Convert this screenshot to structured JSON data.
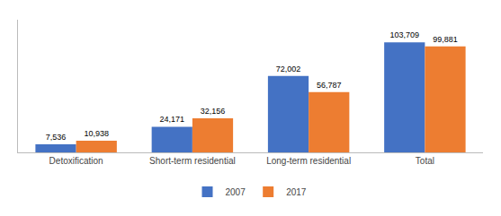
{
  "chart_data": {
    "type": "bar",
    "categories": [
      "Detoxification",
      "Short-term residential",
      "Long-term residential",
      "Total"
    ],
    "series": [
      {
        "name": "2007",
        "color": "#4472C4",
        "values": [
          7536,
          24171,
          72002,
          103709
        ],
        "value_labels": [
          "7,536",
          "24,171",
          "72,002",
          "103,709"
        ]
      },
      {
        "name": "2017",
        "color": "#ED7D31",
        "values": [
          10938,
          32156,
          56787,
          99881
        ],
        "value_labels": [
          "10,938",
          "32,156",
          "56,787",
          "99,881"
        ]
      }
    ],
    "ylim": [
      0,
      125000
    ],
    "grid": false,
    "legend": "bottom",
    "data_labels": true,
    "tick_labels": "x"
  }
}
